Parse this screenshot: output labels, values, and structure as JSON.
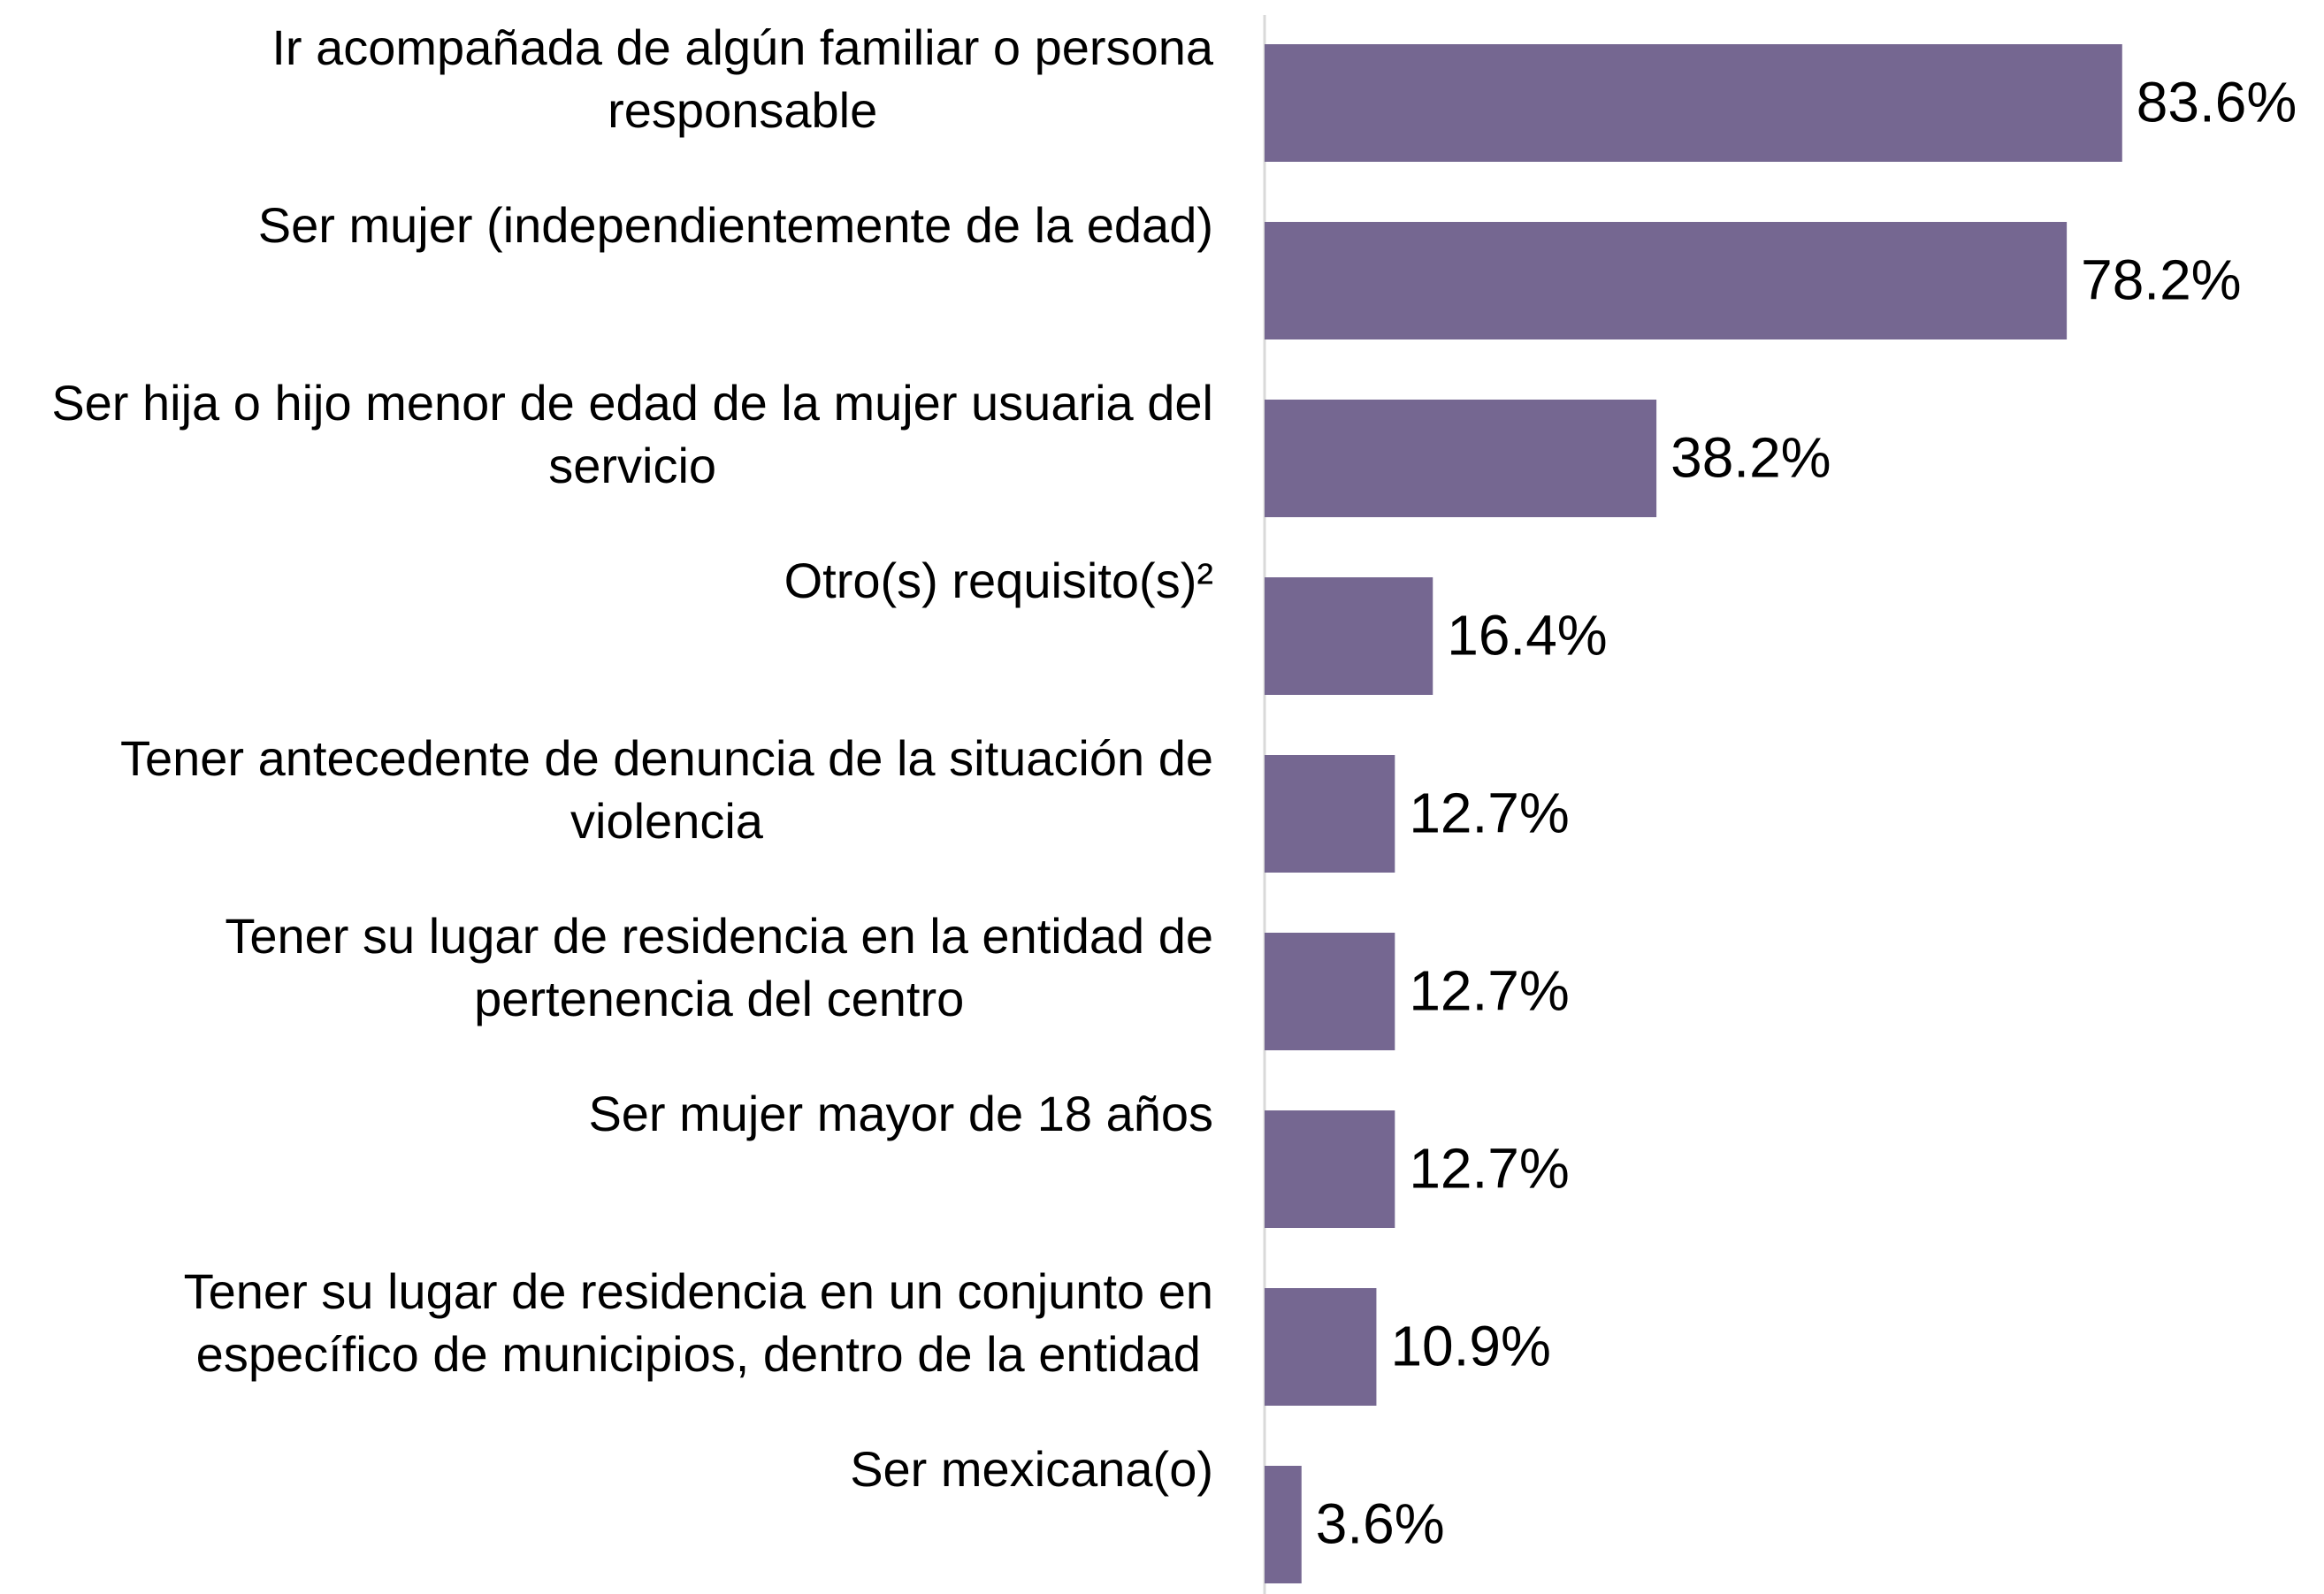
{
  "chart_data": {
    "type": "bar",
    "orientation": "horizontal",
    "categories": [
      "Ir acompañada de algún familiar o persona responsable",
      "Ser mujer (independientemente de la edad)",
      "Ser hija o hijo menor de edad de la mujer usuaria del servicio",
      "Otro(s) requisito(s)²",
      "Tener antecedente de denuncia de la situación de violencia",
      "Tener su lugar de residencia en la entidad de pertenencia del centro",
      "Ser mujer mayor de 18 años",
      "Tener su lugar de residencia en un conjunto en específico de municipios, dentro de la entidad",
      "Ser mexicana(o)"
    ],
    "values": [
      83.6,
      78.2,
      38.2,
      16.4,
      12.7,
      12.7,
      12.7,
      10.9,
      3.6
    ],
    "value_labels": [
      "83.6%",
      "78.2%",
      "38.2%",
      "16.4%",
      "12.7%",
      "12.7%",
      "12.7%",
      "10.9%",
      "3.6%"
    ],
    "color": "#756791",
    "xlim": [
      0,
      100
    ]
  }
}
